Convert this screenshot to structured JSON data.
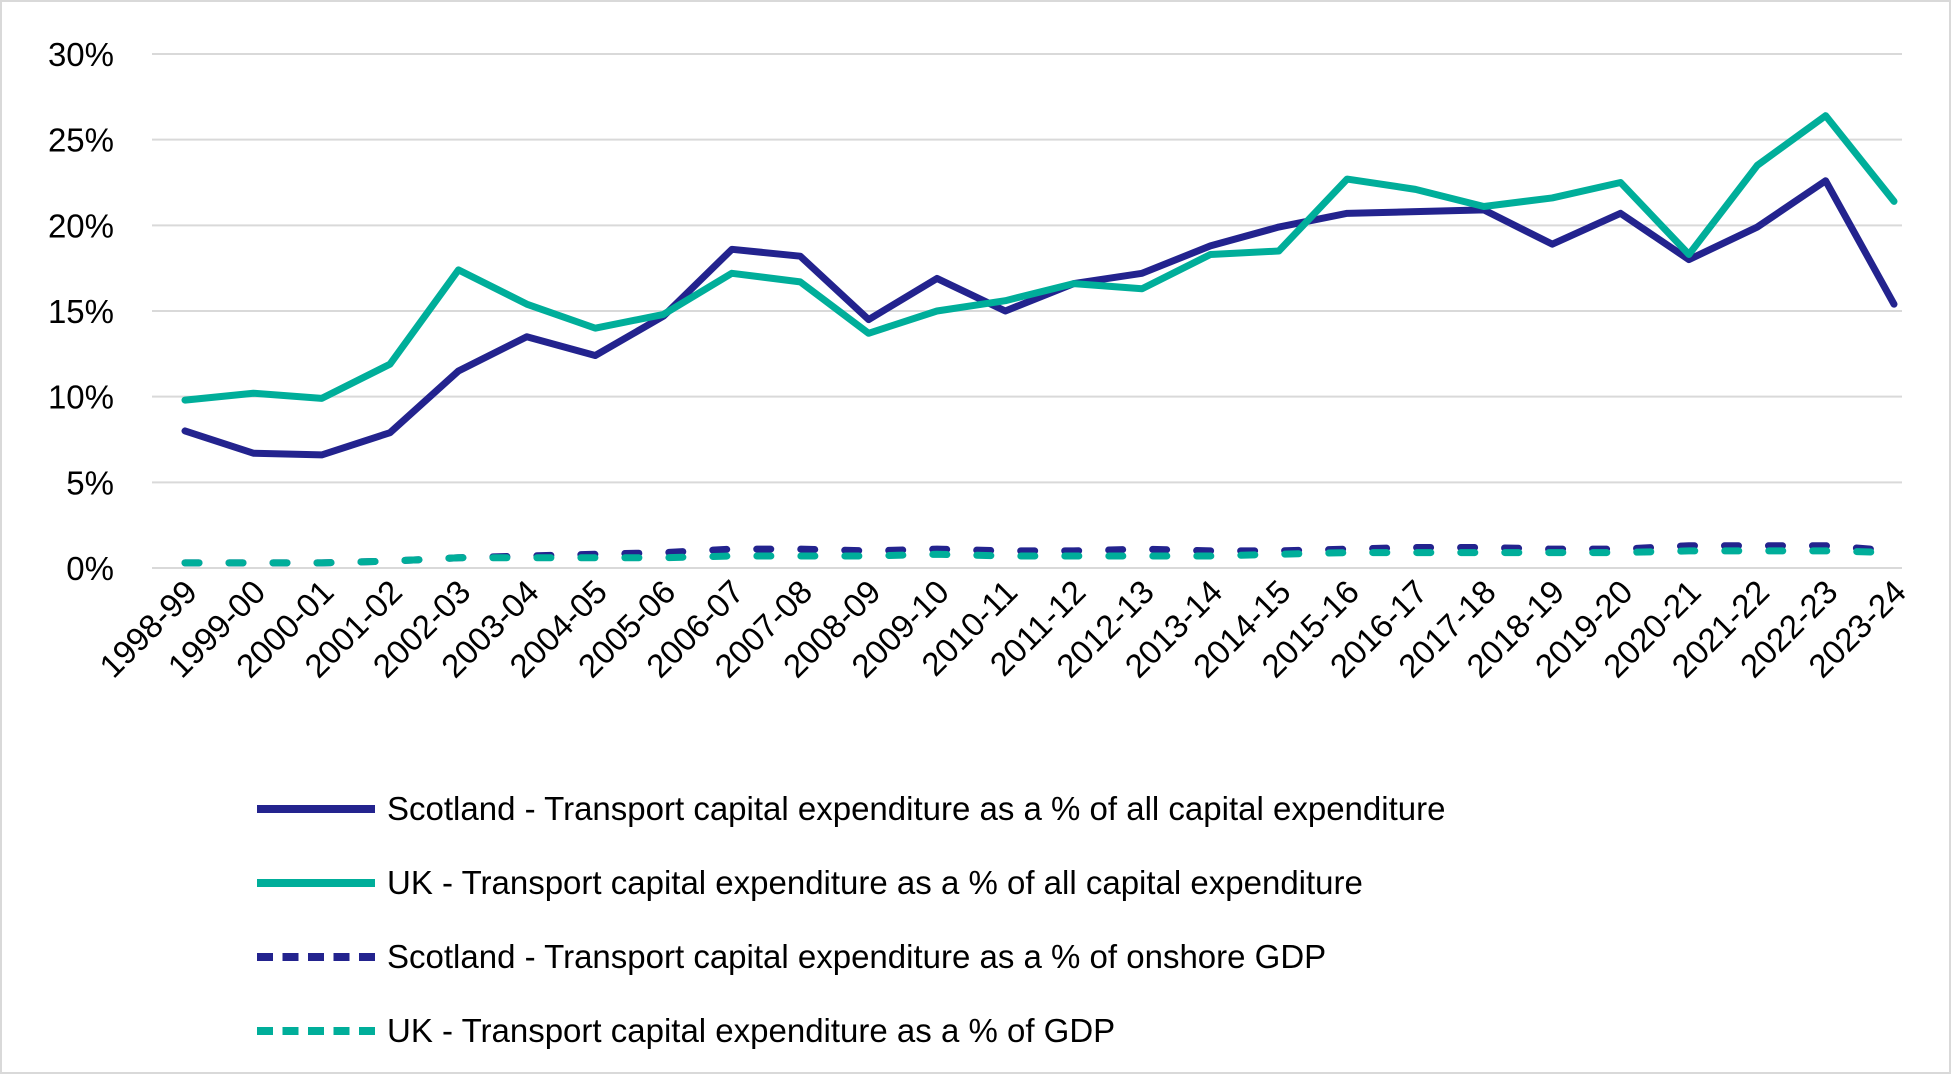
{
  "chart_data": {
    "type": "line",
    "title": "",
    "xlabel": "",
    "ylabel": "",
    "ylim": [
      0,
      30
    ],
    "yticks": [
      "0%",
      "5%",
      "10%",
      "15%",
      "20%",
      "25%",
      "30%"
    ],
    "grid": true,
    "legend_position": "bottom",
    "categories": [
      "1998-99",
      "1999-00",
      "2000-01",
      "2001-02",
      "2002-03",
      "2003-04",
      "2004-05",
      "2005-06",
      "2006-07",
      "2007-08",
      "2008-09",
      "2009-10",
      "2010-11",
      "2011-12",
      "2012-13",
      "2013-14",
      "2014-15",
      "2015-16",
      "2016-17",
      "2017-18",
      "2018-19",
      "2019-20",
      "2020-21",
      "2021-22",
      "2022-23",
      "2023-24"
    ],
    "series": [
      {
        "name": "Scotland - Transport capital expenditure as a % of all capital expenditure",
        "color": "#23238e",
        "style": "solid",
        "values": [
          8.0,
          6.7,
          6.6,
          7.9,
          11.5,
          13.5,
          12.4,
          14.7,
          18.6,
          18.2,
          14.5,
          16.9,
          15.0,
          16.6,
          17.2,
          18.8,
          19.9,
          20.7,
          20.8,
          20.9,
          18.9,
          20.7,
          18.0,
          19.9,
          22.6,
          15.4
        ]
      },
      {
        "name": "UK - Transport capital expenditure as a % of all capital expenditure",
        "color": "#00ae9a",
        "style": "solid",
        "values": [
          9.8,
          10.2,
          9.9,
          11.9,
          17.4,
          15.4,
          14.0,
          14.8,
          17.2,
          16.7,
          13.7,
          15.0,
          15.6,
          16.6,
          16.3,
          18.3,
          18.5,
          22.7,
          22.1,
          21.1,
          21.6,
          22.5,
          18.3,
          23.5,
          26.4,
          21.4
        ]
      },
      {
        "name": "Scotland - Transport capital expenditure as a % of onshore GDP",
        "color": "#23238e",
        "style": "dashed",
        "values": [
          0.3,
          0.3,
          0.3,
          0.4,
          0.6,
          0.7,
          0.8,
          0.9,
          1.1,
          1.1,
          1.0,
          1.1,
          1.0,
          1.0,
          1.1,
          1.0,
          1.0,
          1.1,
          1.2,
          1.2,
          1.1,
          1.1,
          1.3,
          1.3,
          1.3,
          1.0
        ]
      },
      {
        "name": "UK - Transport capital expenditure as a % of GDP",
        "color": "#00ae9a",
        "style": "dashed",
        "values": [
          0.3,
          0.3,
          0.3,
          0.4,
          0.6,
          0.6,
          0.6,
          0.6,
          0.7,
          0.7,
          0.7,
          0.8,
          0.7,
          0.7,
          0.7,
          0.7,
          0.8,
          0.9,
          0.9,
          0.9,
          0.9,
          0.9,
          1.0,
          1.0,
          1.0,
          0.9
        ]
      }
    ]
  }
}
